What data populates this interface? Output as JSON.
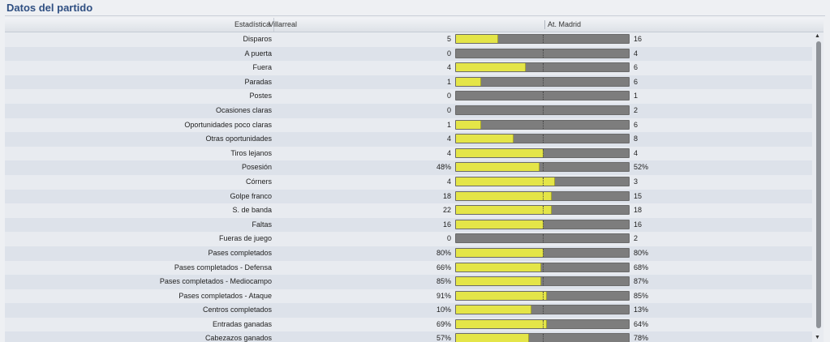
{
  "title": "Datos del partido",
  "header": {
    "stat": "Estadística",
    "home": "Villarreal",
    "away": "At. Madrid"
  },
  "colors": {
    "home": "#e4e548",
    "away": "#7d7d7d"
  },
  "scroll_icons": {
    "up": "triangle-up-icon",
    "down": "triangle-down-icon"
  },
  "rows": [
    {
      "label": "Disparos",
      "home": "5",
      "away": "16",
      "home_share": 0.24
    },
    {
      "label": "A puerta",
      "home": "0",
      "away": "4",
      "home_share": 0.0
    },
    {
      "label": "Fuera",
      "home": "4",
      "away": "6",
      "home_share": 0.4
    },
    {
      "label": "Paradas",
      "home": "1",
      "away": "6",
      "home_share": 0.14
    },
    {
      "label": "Postes",
      "home": "0",
      "away": "1",
      "home_share": 0.0
    },
    {
      "label": "Ocasiones claras",
      "home": "0",
      "away": "2",
      "home_share": 0.0
    },
    {
      "label": "Oportunidades poco claras",
      "home": "1",
      "away": "6",
      "home_share": 0.14
    },
    {
      "label": "Otras oportunidades",
      "home": "4",
      "away": "8",
      "home_share": 0.33
    },
    {
      "label": "Tiros lejanos",
      "home": "4",
      "away": "4",
      "home_share": 0.5
    },
    {
      "label": "Posesión",
      "home": "48%",
      "away": "52%",
      "home_share": 0.48
    },
    {
      "label": "Córners",
      "home": "4",
      "away": "3",
      "home_share": 0.57
    },
    {
      "label": "Golpe franco",
      "home": "18",
      "away": "15",
      "home_share": 0.55
    },
    {
      "label": "S. de banda",
      "home": "22",
      "away": "18",
      "home_share": 0.55
    },
    {
      "label": "Faltas",
      "home": "16",
      "away": "16",
      "home_share": 0.5
    },
    {
      "label": "Fueras de juego",
      "home": "0",
      "away": "2",
      "home_share": 0.0
    },
    {
      "label": "Pases completados",
      "home": "80%",
      "away": "80%",
      "home_share": 0.5
    },
    {
      "label": "Pases completados - Defensa",
      "home": "66%",
      "away": "68%",
      "home_share": 0.49
    },
    {
      "label": "Pases completados - Mediocampo",
      "home": "85%",
      "away": "87%",
      "home_share": 0.49
    },
    {
      "label": "Pases completados - Ataque",
      "home": "91%",
      "away": "85%",
      "home_share": 0.52
    },
    {
      "label": "Centros completados",
      "home": "10%",
      "away": "13%",
      "home_share": 0.43
    },
    {
      "label": "Entradas ganadas",
      "home": "69%",
      "away": "64%",
      "home_share": 0.52
    },
    {
      "label": "Cabezazos ganados",
      "home": "57%",
      "away": "78%",
      "home_share": 0.42
    }
  ]
}
